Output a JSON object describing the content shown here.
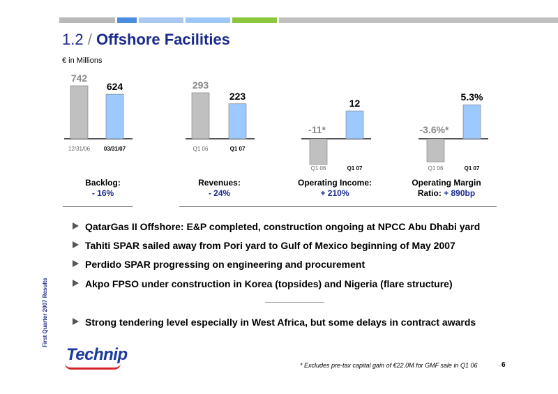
{
  "header": {
    "title_number": "1.2",
    "title_slash": "/",
    "title_text": "Offshore Facilities",
    "unit": "€ in Millions",
    "accent_colors": [
      "#b8b8b8",
      "#4a8de0",
      "#a8c8f0",
      "#9bc8f8",
      "#8cc63f",
      "#c0c0c0"
    ]
  },
  "chart_data": [
    {
      "type": "bar",
      "categories": [
        "12/31/06",
        "03/31/07"
      ],
      "values": [
        742,
        624
      ],
      "value_labels": [
        "742",
        "624"
      ],
      "colors": [
        "#c0c0c0",
        "#9cc9ff"
      ]
    },
    {
      "type": "bar",
      "categories": [
        "Q1 06",
        "Q1 07"
      ],
      "values": [
        293,
        223
      ],
      "value_labels": [
        "293",
        "223"
      ],
      "colors": [
        "#c0c0c0",
        "#9cc9ff"
      ]
    },
    {
      "type": "bar",
      "categories": [
        "Q1 06",
        "Q1 07"
      ],
      "values": [
        -11,
        12
      ],
      "value_labels": [
        "-11*",
        "12"
      ],
      "colors": [
        "#c0c0c0",
        "#9cc9ff"
      ]
    },
    {
      "type": "bar",
      "categories": [
        "Q1 06",
        "Q1 07"
      ],
      "values": [
        -3.6,
        5.3
      ],
      "value_labels": [
        "-3.6%*",
        "5.3%"
      ],
      "colors": [
        "#c0c0c0",
        "#9cc9ff"
      ]
    }
  ],
  "captions": [
    {
      "line1": "Backlog:",
      "line2": "- 16%"
    },
    {
      "line1": "Revenues:",
      "line2": "- 24%"
    },
    {
      "line1": "Operating Income:",
      "line2": "+ 210%"
    },
    {
      "line1": "Operating Margin",
      "line2_prefix": "Ratio: ",
      "line2": "+ 890bp"
    }
  ],
  "bullets": [
    "QatarGas II Offshore: E&P completed, construction ongoing at NPCC Abu Dhabi yard",
    "Tahiti SPAR sailed away from Pori yard to Gulf of Mexico beginning of May 2007",
    "Perdido SPAR progressing on engineering and procurement",
    "Akpo FPSO under construction in Korea (topsides) and Nigeria (flare structure)",
    "Strong tendering level especially in West Africa, but some delays in contract awards"
  ],
  "footer": {
    "side_label": "First Quarter 2007 Results",
    "logo": "Technip",
    "footnote": "* Excludes pre-tax capital gain of €22.0M for GMF sale in Q1 06",
    "page": "6"
  }
}
